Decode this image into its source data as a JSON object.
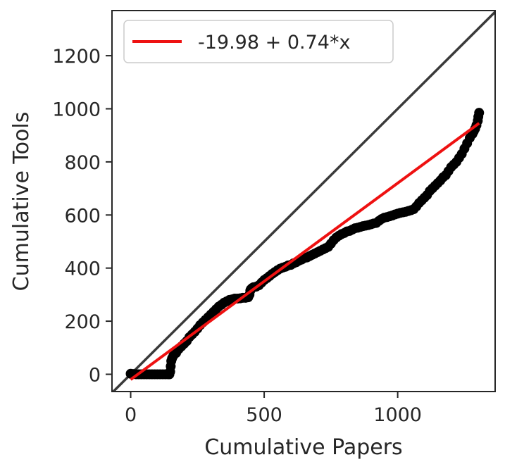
{
  "chart_data": {
    "type": "scatter",
    "title": "",
    "xlabel": "Cumulative Papers",
    "ylabel": "Cumulative Tools",
    "xlim": [
      -70,
      1365
    ],
    "ylim": [
      -65,
      1370
    ],
    "xticks": [
      0,
      500,
      1000
    ],
    "yticks": [
      0,
      200,
      400,
      600,
      800,
      1000,
      1200
    ],
    "grid": false,
    "legend": {
      "placement": "top-left",
      "entries": [
        "-19.98 + 0.74*x"
      ]
    },
    "colors": {
      "points": "#000000",
      "fit": "#ee1111",
      "identity": "#3a3a3a"
    },
    "series": [
      {
        "kind": "points",
        "x": [
          0,
          10,
          20,
          30,
          40,
          50,
          60,
          70,
          80,
          90,
          100,
          110,
          120,
          130,
          140,
          145,
          148,
          150,
          152,
          155,
          160,
          170,
          180,
          190,
          200,
          210,
          220,
          230,
          240,
          250,
          260,
          270,
          280,
          290,
          300,
          310,
          320,
          330,
          340,
          350,
          360,
          370,
          380,
          390,
          400,
          410,
          420,
          430,
          440,
          445,
          448,
          450,
          455,
          460,
          470,
          480,
          490,
          500,
          510,
          520,
          530,
          540,
          550,
          560,
          570,
          580,
          590,
          600,
          610,
          620,
          630,
          640,
          650,
          660,
          670,
          680,
          690,
          700,
          710,
          720,
          730,
          740,
          750,
          760,
          770,
          780,
          790,
          800,
          810,
          820,
          830,
          840,
          850,
          860,
          870,
          880,
          890,
          900,
          910,
          920,
          930,
          940,
          950,
          960,
          970,
          980,
          990,
          1000,
          1010,
          1020,
          1030,
          1040,
          1050,
          1060,
          1070,
          1080,
          1090,
          1100,
          1110,
          1120,
          1130,
          1140,
          1150,
          1160,
          1170,
          1180,
          1190,
          1200,
          1210,
          1220,
          1230,
          1240,
          1250,
          1260,
          1270,
          1280,
          1285,
          1290,
          1295,
          1300,
          1302,
          1305
        ],
        "y": [
          2,
          1,
          0,
          0,
          0,
          0,
          0,
          0,
          0,
          0,
          0,
          0,
          0,
          0,
          0,
          0,
          10,
          30,
          50,
          60,
          70,
          80,
          95,
          105,
          115,
          125,
          140,
          150,
          160,
          172,
          185,
          195,
          205,
          215,
          225,
          235,
          245,
          255,
          262,
          270,
          275,
          280,
          282,
          285,
          285,
          286,
          288,
          288,
          290,
          300,
          315,
          320,
          325,
          328,
          330,
          335,
          345,
          355,
          362,
          370,
          378,
          385,
          392,
          398,
          402,
          405,
          410,
          412,
          418,
          422,
          428,
          432,
          438,
          440,
          445,
          450,
          455,
          460,
          465,
          470,
          475,
          480,
          492,
          505,
          515,
          522,
          528,
          532,
          538,
          540,
          545,
          550,
          552,
          555,
          558,
          560,
          562,
          565,
          568,
          570,
          578,
          585,
          590,
          592,
          595,
          598,
          602,
          605,
          608,
          610,
          612,
          615,
          618,
          622,
          632,
          645,
          655,
          665,
          675,
          690,
          700,
          710,
          720,
          730,
          742,
          750,
          765,
          780,
          790,
          800,
          815,
          830,
          850,
          870,
          890,
          905,
          915,
          925,
          938,
          955,
          970,
          985
        ]
      },
      {
        "kind": "fit",
        "name": "-19.98 + 0.74*x",
        "intercept": -19.98,
        "slope": 0.74,
        "x": [
          0,
          1305
        ]
      },
      {
        "kind": "identity",
        "slope": 1
      }
    ]
  }
}
